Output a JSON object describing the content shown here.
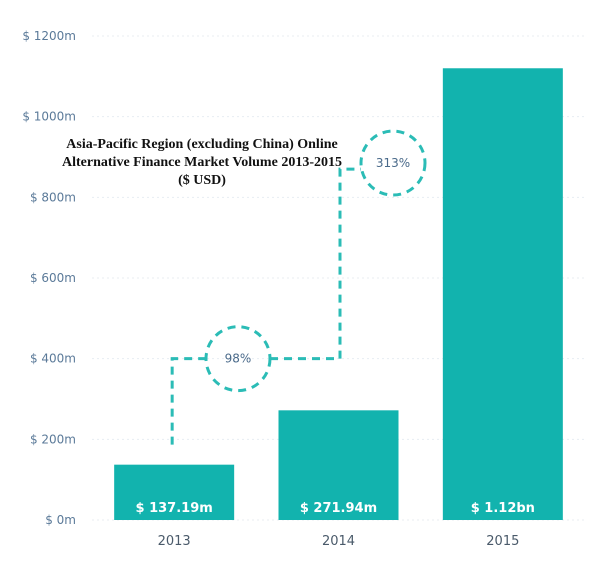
{
  "chart_data": {
    "type": "bar",
    "title": "Asia-Pacific Region (excluding China) Online Alternative Finance Market Volume 2013-2015 ($ USD)",
    "categories": [
      "2013",
      "2014",
      "2015"
    ],
    "values": [
      137.19,
      271.94,
      1120
    ],
    "value_labels": [
      "$ 137.19m",
      "$ 271.94m",
      "$ 1.12bn"
    ],
    "ylim": [
      0,
      1200
    ],
    "yticks": [
      0,
      200,
      400,
      600,
      800,
      1000,
      1200
    ],
    "ytick_labels": [
      "$ 0m",
      "$ 200m",
      "$ 400m",
      "$ 600m",
      "$ 800m",
      "$ 1000m",
      "$ 1200m"
    ],
    "grid": true,
    "growth_annotations": [
      {
        "from": "2013",
        "to": "2014",
        "label": "98%"
      },
      {
        "from": "2014",
        "to": "2015",
        "label": "313%"
      }
    ],
    "colors": {
      "bar": "#12b3ae",
      "annotation": "#2bbcb6",
      "axis_text": "#5b7a99"
    }
  }
}
